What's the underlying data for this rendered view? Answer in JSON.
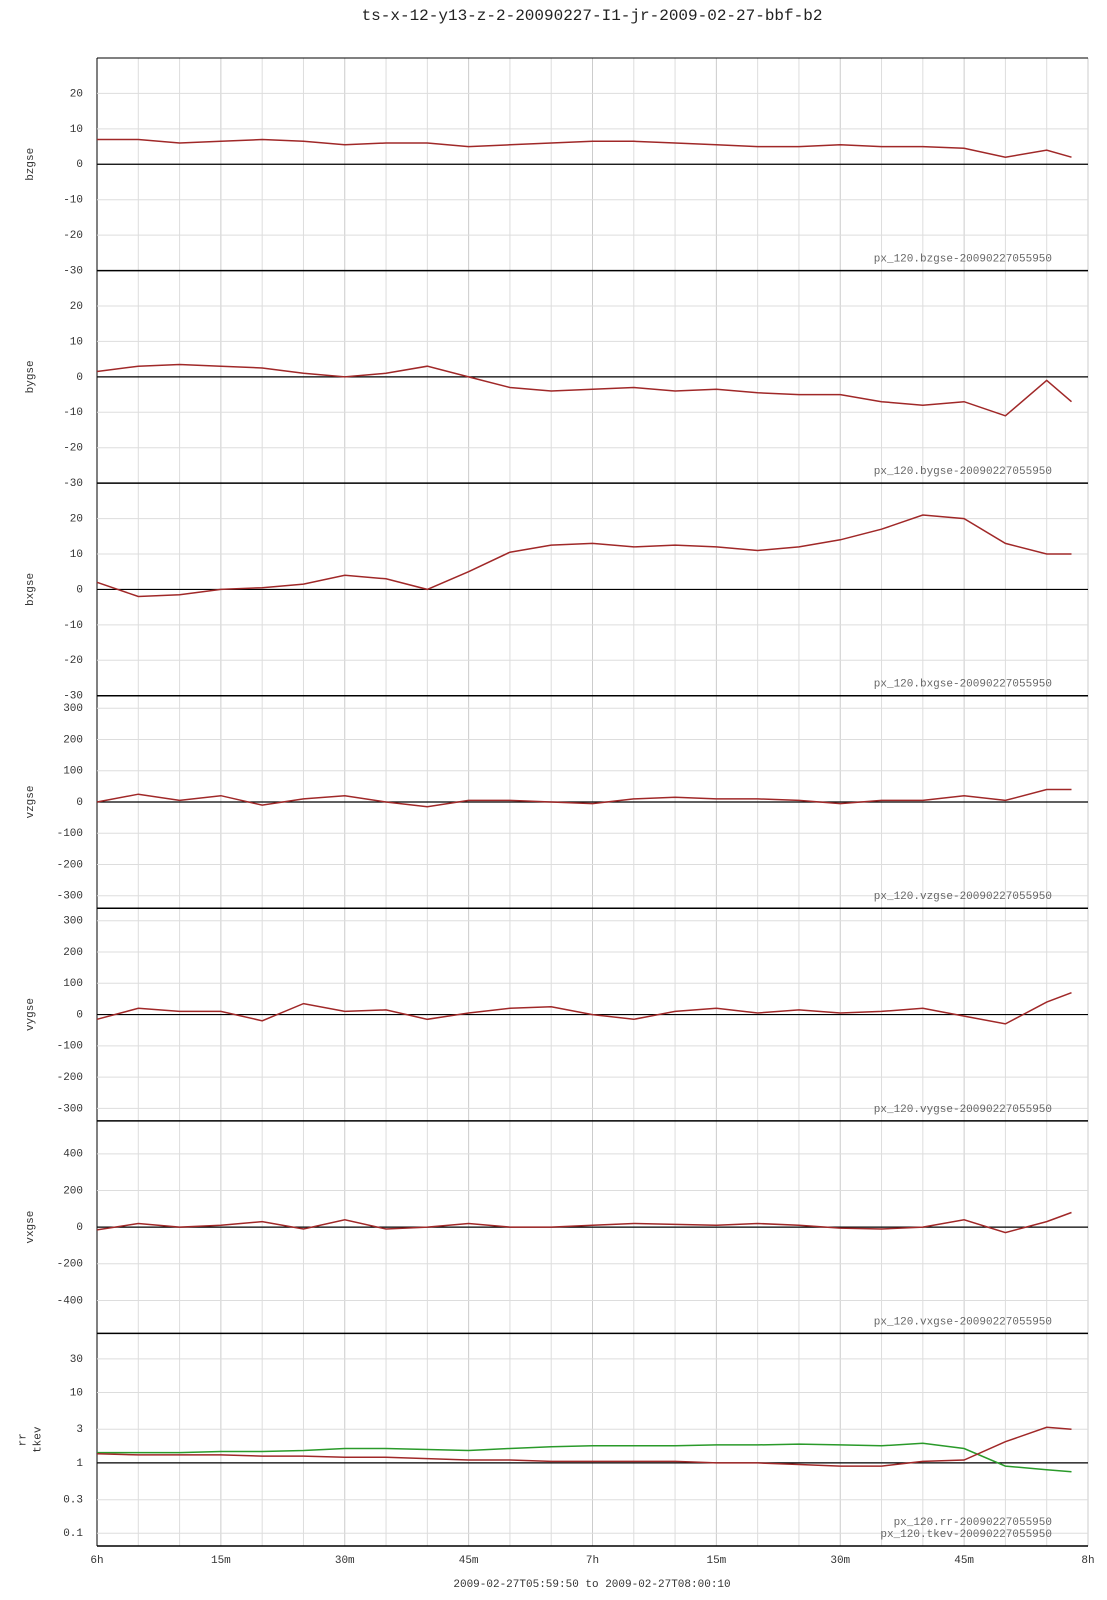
{
  "title": "ts-x-12-y13-z-2-20090227-I1-jr-2009-02-27-bbf-b2",
  "x_label": "2009-02-27T05:59:50 to 2009-02-27T08:00:10",
  "xlim": [
    0,
    120
  ],
  "xticks": [
    {
      "value": 0,
      "label": "6h"
    },
    {
      "value": 15,
      "label": "15m"
    },
    {
      "value": 30,
      "label": "30m"
    },
    {
      "value": 45,
      "label": "45m"
    },
    {
      "value": 60,
      "label": "7h"
    },
    {
      "value": 75,
      "label": "15m"
    },
    {
      "value": 90,
      "label": "30m"
    },
    {
      "value": 105,
      "label": "45m"
    },
    {
      "value": 120,
      "label": "8h"
    }
  ],
  "xgrid": [
    5,
    10,
    20,
    25,
    35,
    40,
    50,
    55,
    65,
    70,
    80,
    85,
    95,
    100,
    110,
    115
  ],
  "chart_data": [
    {
      "type": "line",
      "ylabel": [
        "bzgse"
      ],
      "ylim": [
        -30,
        30
      ],
      "yticks": [
        -30,
        -20,
        -10,
        0,
        10,
        20
      ],
      "refline": 0,
      "x": [
        0,
        5,
        10,
        15,
        20,
        25,
        30,
        35,
        40,
        45,
        50,
        55,
        60,
        65,
        70,
        75,
        80,
        85,
        90,
        95,
        100,
        105,
        110,
        115,
        118
      ],
      "series": [
        {
          "name": "px_120.bzgse-20090227055950",
          "color": "#a02828",
          "values": [
            7,
            7,
            6,
            6.5,
            7,
            6.5,
            5.5,
            6,
            6,
            5,
            5.5,
            6,
            6.5,
            6.5,
            6,
            5.5,
            5,
            5,
            5.5,
            5,
            5,
            4.5,
            2,
            4,
            2
          ]
        }
      ]
    },
    {
      "type": "line",
      "ylabel": [
        "bygse"
      ],
      "ylim": [
        -30,
        30
      ],
      "yticks": [
        -30,
        -20,
        -10,
        0,
        10,
        20
      ],
      "refline": 0,
      "x": [
        0,
        5,
        10,
        15,
        20,
        25,
        30,
        35,
        40,
        45,
        50,
        55,
        60,
        65,
        70,
        75,
        80,
        85,
        90,
        95,
        100,
        105,
        110,
        115,
        118
      ],
      "series": [
        {
          "name": "px_120.bygse-20090227055950",
          "color": "#a02828",
          "values": [
            1.5,
            3,
            3.5,
            3,
            2.5,
            1,
            0,
            1,
            3,
            0,
            -3,
            -4,
            -3.5,
            -3,
            -4,
            -3.5,
            -4.5,
            -5,
            -5,
            -7,
            -8,
            -7,
            -11,
            -1,
            -7
          ]
        }
      ]
    },
    {
      "type": "line",
      "ylabel": [
        "bxgse"
      ],
      "ylim": [
        -30,
        30
      ],
      "yticks": [
        -30,
        -20,
        -10,
        0,
        10,
        20
      ],
      "refline": 0,
      "x": [
        0,
        5,
        10,
        15,
        20,
        25,
        30,
        35,
        40,
        45,
        50,
        55,
        60,
        65,
        70,
        75,
        80,
        85,
        90,
        95,
        100,
        105,
        110,
        115,
        118
      ],
      "series": [
        {
          "name": "px_120.bxgse-20090227055950",
          "color": "#a02828",
          "values": [
            2,
            -2,
            -1.5,
            0,
            0.5,
            1.5,
            4,
            3,
            0,
            5,
            10.5,
            12.5,
            13,
            12,
            12.5,
            12,
            11,
            12,
            14,
            17,
            21,
            20,
            13,
            10,
            10
          ]
        }
      ]
    },
    {
      "type": "line",
      "ylabel": [
        "vzgse"
      ],
      "ylim": [
        -340,
        340
      ],
      "yticks": [
        -300,
        -200,
        -100,
        0,
        100,
        200,
        300
      ],
      "refline": 0,
      "x": [
        0,
        5,
        10,
        15,
        20,
        25,
        30,
        35,
        40,
        45,
        50,
        55,
        60,
        65,
        70,
        75,
        80,
        85,
        90,
        95,
        100,
        105,
        110,
        115,
        118
      ],
      "series": [
        {
          "name": "px_120.vzgse-20090227055950",
          "color": "#a02828",
          "values": [
            0,
            25,
            5,
            20,
            -10,
            10,
            20,
            0,
            -15,
            5,
            5,
            0,
            -5,
            10,
            15,
            10,
            10,
            5,
            -5,
            5,
            5,
            20,
            5,
            40,
            40
          ]
        }
      ]
    },
    {
      "type": "line",
      "ylabel": [
        "vygse"
      ],
      "ylim": [
        -340,
        340
      ],
      "yticks": [
        -300,
        -200,
        -100,
        0,
        100,
        200,
        300
      ],
      "refline": 0,
      "x": [
        0,
        5,
        10,
        15,
        20,
        25,
        30,
        35,
        40,
        45,
        50,
        55,
        60,
        65,
        70,
        75,
        80,
        85,
        90,
        95,
        100,
        105,
        110,
        115,
        118
      ],
      "series": [
        {
          "name": "px_120.vygse-20090227055950",
          "color": "#a02828",
          "values": [
            -15,
            20,
            10,
            10,
            -20,
            35,
            10,
            15,
            -15,
            5,
            20,
            25,
            0,
            -15,
            10,
            20,
            5,
            15,
            5,
            10,
            20,
            -5,
            -30,
            40,
            70
          ]
        }
      ]
    },
    {
      "type": "line",
      "ylabel": [
        "vxgse"
      ],
      "ylim": [
        -580,
        580
      ],
      "yticks": [
        -400,
        -200,
        0,
        200,
        400
      ],
      "refline": 0,
      "x": [
        0,
        5,
        10,
        15,
        20,
        25,
        30,
        35,
        40,
        45,
        50,
        55,
        60,
        65,
        70,
        75,
        80,
        85,
        90,
        95,
        100,
        105,
        110,
        115,
        118
      ],
      "series": [
        {
          "name": "px_120.vxgse-20090227055950",
          "color": "#a02828",
          "values": [
            -15,
            20,
            0,
            10,
            30,
            -10,
            40,
            -10,
            0,
            20,
            0,
            0,
            10,
            20,
            15,
            10,
            20,
            10,
            -5,
            -10,
            0,
            40,
            -30,
            30,
            80
          ]
        }
      ]
    },
    {
      "type": "line",
      "ylabel": [
        "rr",
        "tkev"
      ],
      "log": true,
      "ylim": [
        0.066,
        69
      ],
      "yticks": [
        0.1,
        0.3,
        1,
        3,
        10,
        30
      ],
      "refline": 1,
      "x": [
        0,
        5,
        10,
        15,
        20,
        25,
        30,
        35,
        40,
        45,
        50,
        55,
        60,
        65,
        70,
        75,
        80,
        85,
        90,
        95,
        100,
        105,
        110,
        115,
        118
      ],
      "series": [
        {
          "name": "px_120.rr-20090227055950",
          "color": "#2a9a2a",
          "values": [
            1.4,
            1.4,
            1.4,
            1.45,
            1.45,
            1.5,
            1.6,
            1.6,
            1.55,
            1.5,
            1.6,
            1.7,
            1.75,
            1.75,
            1.75,
            1.8,
            1.8,
            1.85,
            1.8,
            1.75,
            1.9,
            1.6,
            0.9,
            0.8,
            0.75
          ]
        },
        {
          "name": "px_120.tkev-20090227055950",
          "color": "#a02828",
          "values": [
            1.35,
            1.3,
            1.3,
            1.3,
            1.25,
            1.25,
            1.2,
            1.2,
            1.15,
            1.1,
            1.1,
            1.05,
            1.05,
            1.05,
            1.05,
            1,
            1,
            0.95,
            0.9,
            0.9,
            1.05,
            1.1,
            2,
            3.2,
            3
          ]
        }
      ]
    }
  ]
}
